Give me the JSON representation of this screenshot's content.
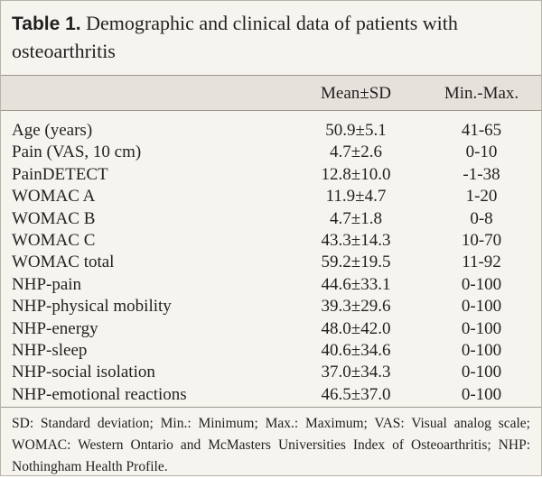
{
  "table": {
    "label": "Table 1.",
    "title": "Demographic and clinical data of patients with osteoarthritis",
    "columns": [
      "Mean±SD",
      "Min.-Max."
    ],
    "rows": [
      [
        "Age (years)",
        "50.9±5.1",
        "41-65"
      ],
      [
        "Pain (VAS, 10 cm)",
        "4.7±2.6",
        "0-10"
      ],
      [
        "PainDETECT",
        "12.8±10.0",
        "-1-38"
      ],
      [
        "WOMAC A",
        "11.9±4.7",
        "1-20"
      ],
      [
        "WOMAC B",
        "4.7±1.8",
        "0-8"
      ],
      [
        "WOMAC C",
        "43.3±14.3",
        "10-70"
      ],
      [
        "WOMAC total",
        "59.2±19.5",
        "11-92"
      ],
      [
        "NHP-pain",
        "44.6±33.1",
        "0-100"
      ],
      [
        "NHP-physical mobility",
        "39.3±29.6",
        "0-100"
      ],
      [
        "NHP-energy",
        "48.0±42.0",
        "0-100"
      ],
      [
        "NHP-sleep",
        "40.6±34.6",
        "0-100"
      ],
      [
        "NHP-social isolation",
        "37.0±34.3",
        "0-100"
      ],
      [
        "NHP-emotional reactions",
        "46.5±37.0",
        "0-100"
      ]
    ],
    "footnote": "SD: Standard deviation; Min.: Minimum; Max.: Maximum; VAS: Visual analog scale; WOMAC: Western Ontario and McMasters Universities Index of Osteoarthritis; NHP: Nothingham Health Profile."
  }
}
